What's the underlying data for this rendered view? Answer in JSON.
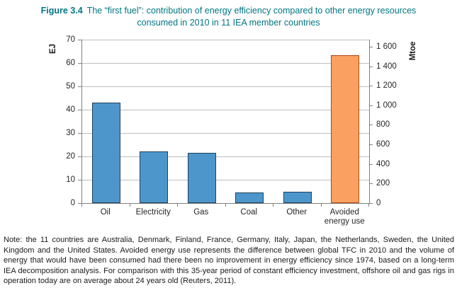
{
  "figure": {
    "label": "Figure 3.4",
    "title": "The “first fuel”: contribution of energy efficiency compared to other energy resources",
    "title_line2": "consumed in 2010 in 11 IEA member countries"
  },
  "chart_data": {
    "type": "bar",
    "categories": [
      "Oil",
      "Electricity",
      "Gas",
      "Coal",
      "Other",
      "Avoided energy use"
    ],
    "values": [
      43,
      22,
      21.5,
      4.4,
      5.0,
      63.2
    ],
    "value_unit": "EJ",
    "ylabel_left": "EJ",
    "ylabel_right": "Mtoe",
    "ylim_left": [
      0,
      70
    ],
    "yticks_left": [
      0,
      10,
      20,
      30,
      40,
      50,
      60,
      70
    ],
    "yticks_right": [
      0,
      200,
      400,
      600,
      800,
      1000,
      1200,
      1400,
      1600
    ],
    "ytick_right_labels": [
      "0",
      "200",
      "400",
      "600",
      "800",
      "1 000",
      "1 200",
      "1 400",
      "1 600"
    ],
    "mtoe_per_ej": 23.885,
    "grid": true,
    "legend": "none",
    "highlight_index": 5,
    "colors": {
      "bar_fill": "#4D96CB",
      "bar_border": "#20415B",
      "highlight_fill": "#FAA061",
      "highlight_border": "#AE4A15",
      "gridline": "#BFBFBF",
      "axis": "#808080",
      "title": "#007682"
    }
  },
  "note": "Note: the 11 countries are Australia, Denmark, Finland, France, Germany, Italy, Japan, the Netherlands, Sweden, the United Kingdom and the United States. Avoided energy use represents the difference between global TFC in 2010 and the volume of energy that would have been consumed had there been no improvement in energy efficiency since 1974, based on a long-term IEA decomposition analysis. For comparison with this 35-year period of constant efficiency investment, offshore oil and gas rigs in operation today are on average about 24 years old (Reuters, 2011)."
}
